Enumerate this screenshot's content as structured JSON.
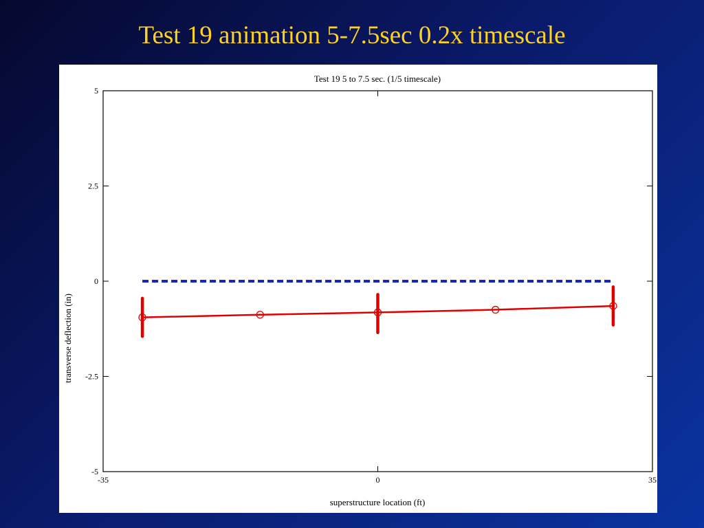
{
  "slide": {
    "title": "Test 19 animation 5-7.5sec 0.2x timescale"
  },
  "colors": {
    "title": "#ffd21f",
    "baseline": "#1424c8",
    "deflection": "#e00000"
  },
  "chart_data": {
    "type": "line",
    "title": "Test 19 5 to 7.5 sec. (1/5 timescale)",
    "xlabel": "superstructure location (ft)",
    "ylabel": "transverse deflection (in)",
    "xlim": [
      -35,
      35
    ],
    "ylim": [
      -5,
      5
    ],
    "xticks": [
      -35,
      0,
      35
    ],
    "xtick_labels": [
      "-35",
      "0",
      "35"
    ],
    "yticks": [
      -5,
      -2.5,
      0,
      2.5,
      5
    ],
    "ytick_labels": [
      "-5",
      "-2.5",
      "0",
      "2.5",
      "5"
    ],
    "grid": false,
    "series": [
      {
        "style": "dashed",
        "color": "#1424c8",
        "x": [
          -30,
          -15,
          0,
          15,
          30
        ],
        "y": [
          0,
          0,
          0,
          0,
          0
        ]
      },
      {
        "style": "solid-with-circle-markers",
        "color": "#e00000",
        "x": [
          -30,
          -15,
          0,
          15,
          30
        ],
        "y": [
          -0.95,
          -0.88,
          -0.82,
          -0.75,
          -0.65
        ]
      }
    ],
    "range_bars": [
      {
        "x": -30,
        "ymin": -1.45,
        "ymax": -0.45
      },
      {
        "x": 0,
        "ymin": -1.35,
        "ymax": -0.35
      },
      {
        "x": 30,
        "ymin": -1.15,
        "ymax": -0.15
      }
    ]
  }
}
